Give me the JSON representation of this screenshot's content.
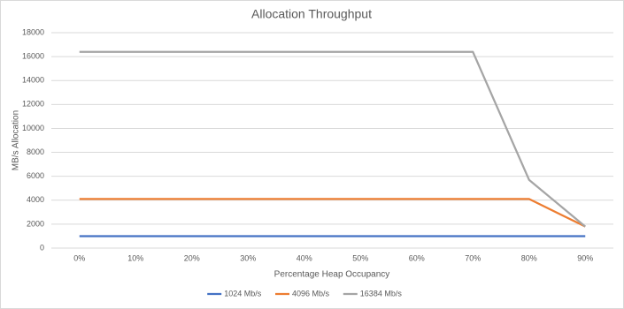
{
  "chart_data": {
    "type": "line",
    "title": "Allocation Throughput",
    "x_label": "Percentage Heap Occupancy",
    "y_label": "MB/s Allocation",
    "categories": [
      "0%",
      "10%",
      "20%",
      "30%",
      "40%",
      "50%",
      "60%",
      "70%",
      "80%",
      "90%"
    ],
    "series": [
      {
        "name": "1024 Mb/s",
        "color": "#4472c4",
        "values": [
          1000,
          1000,
          1000,
          1000,
          1000,
          1000,
          1000,
          1000,
          1000,
          1000
        ]
      },
      {
        "name": "4096 Mb/s",
        "color": "#ed7d31",
        "values": [
          4100,
          4100,
          4100,
          4100,
          4100,
          4100,
          4100,
          4100,
          4100,
          1800
        ]
      },
      {
        "name": "16384 Mb/s",
        "color": "#a5a5a5",
        "values": [
          16400,
          16400,
          16400,
          16400,
          16400,
          16400,
          16400,
          16400,
          5700,
          1800
        ]
      }
    ],
    "ylim": [
      0,
      18000
    ],
    "yticks": [
      0,
      2000,
      4000,
      6000,
      8000,
      10000,
      12000,
      14000,
      16000,
      18000
    ],
    "grid": true,
    "legend": "bottom"
  }
}
